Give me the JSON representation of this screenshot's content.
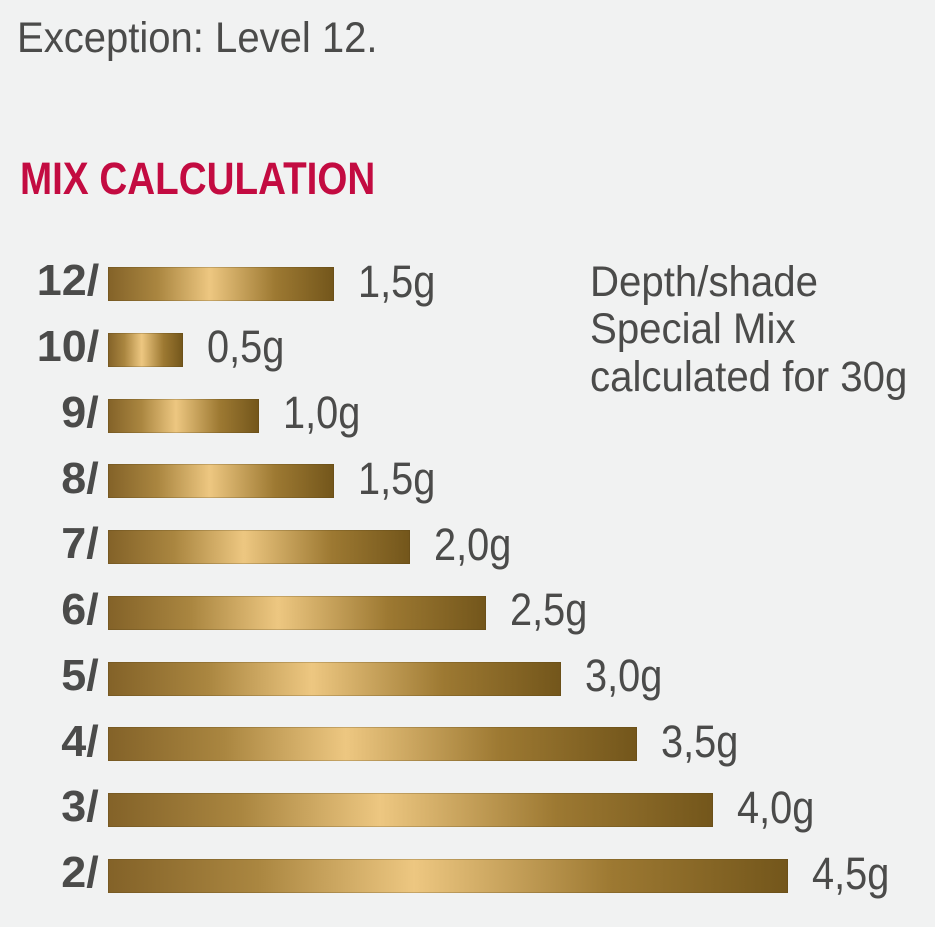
{
  "page": {
    "intro_text": "Exception: Level 12."
  },
  "chart_data": {
    "type": "bar",
    "orientation": "horizontal",
    "title": "MIX CALCULATION",
    "categories": [
      "12/",
      "10/",
      "9/",
      "8/",
      "7/",
      "6/",
      "5/",
      "4/",
      "3/",
      "2/"
    ],
    "values": [
      1.5,
      0.5,
      1.0,
      1.5,
      2.0,
      2.5,
      3.0,
      3.5,
      4.0,
      4.5
    ],
    "value_labels": [
      "1,5g",
      "0,5g",
      "1,0g",
      "1,5g",
      "2,0g",
      "2,5g",
      "3,0g",
      "3,5g",
      "4,0g",
      "4,5g"
    ],
    "unit": "g",
    "xlim": [
      0,
      4.5
    ],
    "grid": false,
    "legend": false,
    "annotation_lines": [
      "Depth/shade",
      "Special Mix",
      "calculated for 30g"
    ]
  },
  "colors": {
    "bg": "#f1f2f2",
    "text": "#4b4b4a",
    "accent": "#c30b41",
    "gold-left": "#836228",
    "gold-mid1": "#aa8640",
    "gold-light": "#edc781",
    "gold-mid2": "#9d7932",
    "gold-right": "#73561b"
  }
}
